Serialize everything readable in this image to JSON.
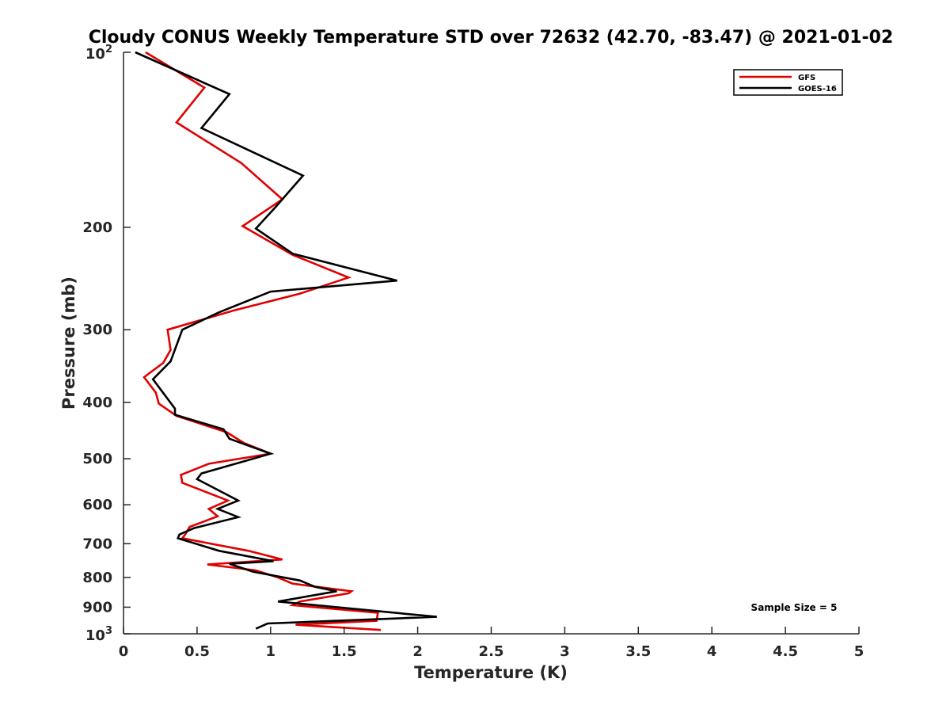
{
  "chart_data": {
    "type": "line",
    "title": "Cloudy CONUS Weekly Temperature STD over 72632 (42.70, -83.47) @ 2021-01-02",
    "xlabel": "Temperature (K)",
    "ylabel": "Pressure (mb)",
    "xlim": [
      0,
      5
    ],
    "ylim": [
      100,
      1000
    ],
    "y_scale": "log",
    "y_reversed": true,
    "x_ticks": [
      "0",
      "0.5",
      "1",
      "1.5",
      "2",
      "2.5",
      "3",
      "3.5",
      "4",
      "4.5",
      "5"
    ],
    "y_ticks": [
      {
        "value": 200,
        "label": "200"
      },
      {
        "value": 300,
        "label": "300"
      },
      {
        "value": 400,
        "label": "400"
      },
      {
        "value": 500,
        "label": "500"
      },
      {
        "value": 600,
        "label": "600"
      },
      {
        "value": 700,
        "label": "700"
      },
      {
        "value": 800,
        "label": "800"
      },
      {
        "value": 900,
        "label": "900"
      }
    ],
    "y_tick_ends": [
      {
        "value": 100,
        "base": "10",
        "exp": "2"
      },
      {
        "value": 1000,
        "base": "10",
        "exp": "3"
      }
    ],
    "legend_position": "top-right",
    "annotation": "Sample Size = 5",
    "series": [
      {
        "name": "GFS",
        "color": "#e00000",
        "points": [
          [
            0.15,
            100
          ],
          [
            0.55,
            115
          ],
          [
            0.36,
            132
          ],
          [
            0.8,
            155
          ],
          [
            1.08,
            179
          ],
          [
            0.81,
            199
          ],
          [
            1.15,
            223
          ],
          [
            1.53,
            244
          ],
          [
            1.2,
            260
          ],
          [
            0.75,
            278
          ],
          [
            0.3,
            300
          ],
          [
            0.32,
            325
          ],
          [
            0.27,
            342
          ],
          [
            0.14,
            362
          ],
          [
            0.22,
            385
          ],
          [
            0.24,
            402
          ],
          [
            0.36,
            422
          ],
          [
            0.7,
            450
          ],
          [
            0.82,
            470
          ],
          [
            1.0,
            490
          ],
          [
            0.58,
            510
          ],
          [
            0.39,
            533
          ],
          [
            0.4,
            550
          ],
          [
            0.71,
            590
          ],
          [
            0.58,
            610
          ],
          [
            0.64,
            628
          ],
          [
            0.45,
            655
          ],
          [
            0.42,
            675
          ],
          [
            0.4,
            685
          ],
          [
            0.85,
            720
          ],
          [
            1.08,
            745
          ],
          [
            0.57,
            760
          ],
          [
            0.9,
            778
          ],
          [
            1.05,
            800
          ],
          [
            1.15,
            820
          ],
          [
            1.55,
            845
          ],
          [
            1.53,
            852
          ],
          [
            1.2,
            880
          ],
          [
            1.15,
            893
          ],
          [
            1.73,
            920
          ],
          [
            1.72,
            950
          ],
          [
            1.17,
            965
          ],
          [
            1.75,
            985
          ]
        ]
      },
      {
        "name": "GOES-16",
        "color": "#000000",
        "points": [
          [
            0.08,
            100
          ],
          [
            0.72,
            118
          ],
          [
            0.53,
            135
          ],
          [
            1.22,
            163
          ],
          [
            1.03,
            185
          ],
          [
            0.9,
            201
          ],
          [
            1.15,
            222
          ],
          [
            1.86,
            247
          ],
          [
            1.0,
            258
          ],
          [
            0.65,
            280
          ],
          [
            0.4,
            300
          ],
          [
            0.32,
            340
          ],
          [
            0.2,
            365
          ],
          [
            0.35,
            410
          ],
          [
            0.35,
            420
          ],
          [
            0.68,
            445
          ],
          [
            0.72,
            462
          ],
          [
            1.0,
            490
          ],
          [
            0.82,
            505
          ],
          [
            0.53,
            530
          ],
          [
            0.5,
            542
          ],
          [
            0.78,
            590
          ],
          [
            0.64,
            610
          ],
          [
            0.78,
            630
          ],
          [
            0.48,
            658
          ],
          [
            0.38,
            675
          ],
          [
            0.37,
            685
          ],
          [
            0.65,
            720
          ],
          [
            1.02,
            750
          ],
          [
            0.72,
            758
          ],
          [
            0.88,
            782
          ],
          [
            1.2,
            810
          ],
          [
            1.3,
            830
          ],
          [
            1.45,
            845
          ],
          [
            1.05,
            880
          ],
          [
            2.13,
            935
          ],
          [
            0.98,
            960
          ],
          [
            0.9,
            980
          ]
        ]
      }
    ]
  }
}
